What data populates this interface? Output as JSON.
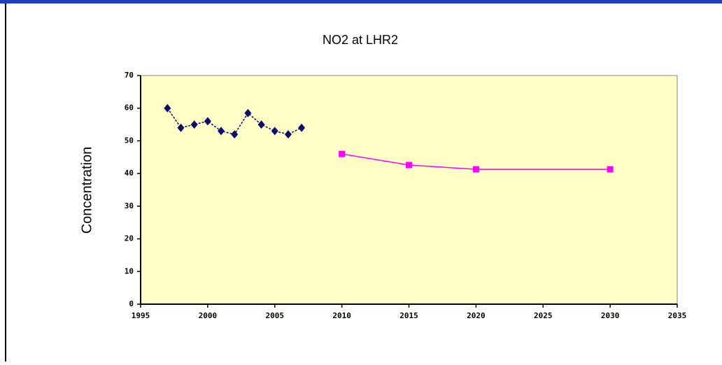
{
  "chart_data": {
    "type": "line",
    "title": "NO2 at LHR2",
    "y_label": "Concentration",
    "xlim": [
      1995,
      2035
    ],
    "xticks": [
      1995,
      2000,
      2005,
      2010,
      2015,
      2020,
      2025,
      2030,
      2035
    ],
    "ylim": [
      0,
      70
    ],
    "yticks": [
      0,
      10,
      20,
      30,
      40,
      50,
      60,
      70
    ],
    "grid": false,
    "background": "#ffffc6",
    "series": [
      {
        "color": "#0a0a6e",
        "marker": "diamond",
        "dash": true,
        "x": [
          1997,
          1998,
          1999,
          2000,
          2001,
          2002,
          2003,
          2004,
          2005,
          2006,
          2007
        ],
        "values": [
          60,
          54,
          55,
          56,
          53,
          52,
          58.5,
          55,
          53,
          52,
          54
        ]
      },
      {
        "color": "#ff00ff",
        "marker": "square",
        "dash": false,
        "x": [
          2010,
          2015,
          2020,
          2030
        ],
        "values": [
          46,
          42.6,
          41.3,
          41.3
        ]
      }
    ]
  }
}
